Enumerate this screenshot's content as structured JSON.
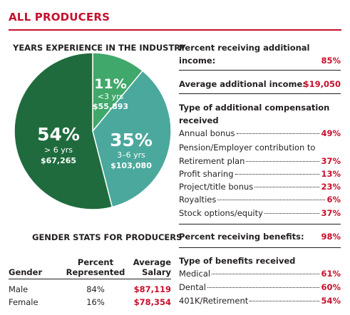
{
  "header": {
    "title": "ALL PRODUCERS"
  },
  "chart_data": {
    "type": "pie",
    "title": "YEARS EXPERIENCE IN THE INDUSTRY",
    "slices": [
      {
        "percent_label": "11%",
        "range": "<3 yrs",
        "salary": "$55,893",
        "value": 11,
        "color": "#3fa86a"
      },
      {
        "percent_label": "35%",
        "range": "3–6 yrs",
        "salary": "$103,080",
        "value": 35,
        "color": "#4aa89c"
      },
      {
        "percent_label": "54%",
        "range": "> 6 yrs",
        "salary": "$67,265",
        "value": 54,
        "color": "#1f6b3e"
      }
    ]
  },
  "gender": {
    "title": "GENDER STATS FOR PRODUCERS",
    "headers": {
      "gender": "Gender",
      "percent_1": "Percent",
      "percent_2": "Represented",
      "salary_1": "Average",
      "salary_2": "Salary"
    },
    "rows": [
      {
        "gender": "Male",
        "percent": "84%",
        "salary": "$87,119"
      },
      {
        "gender": "Female",
        "percent": "16%",
        "salary": "$78,354"
      }
    ]
  },
  "stats": {
    "additional_income_label_1": "Percent receiving additional",
    "additional_income_label_2": "income:",
    "additional_income_value": "85%",
    "avg_additional_label": "Average additional income:",
    "avg_additional_value": "$19,050",
    "comp_type_label_1": "Type of additional compensation",
    "comp_type_label_2": "received",
    "comp_items": [
      {
        "label": "Annual bonus",
        "value": "49%"
      },
      {
        "label": "Pension/Employer contribution to",
        "value": ""
      },
      {
        "label": "Retirement plan",
        "value": "37%"
      },
      {
        "label": "Profit sharing",
        "value": "13%"
      },
      {
        "label": "Project/title bonus",
        "value": "23%"
      },
      {
        "label": "Royalties",
        "value": "6%"
      },
      {
        "label": "Stock options/equity",
        "value": "37%"
      }
    ],
    "benefits_label": "Percent receiving benefits:",
    "benefits_value": "98%",
    "benefit_types_label": "Type of benefits received",
    "benefit_items": [
      {
        "label": "Medical",
        "value": "61%"
      },
      {
        "label": "Dental",
        "value": "60%"
      },
      {
        "label": "401K/Retirement",
        "value": "54%"
      }
    ]
  }
}
